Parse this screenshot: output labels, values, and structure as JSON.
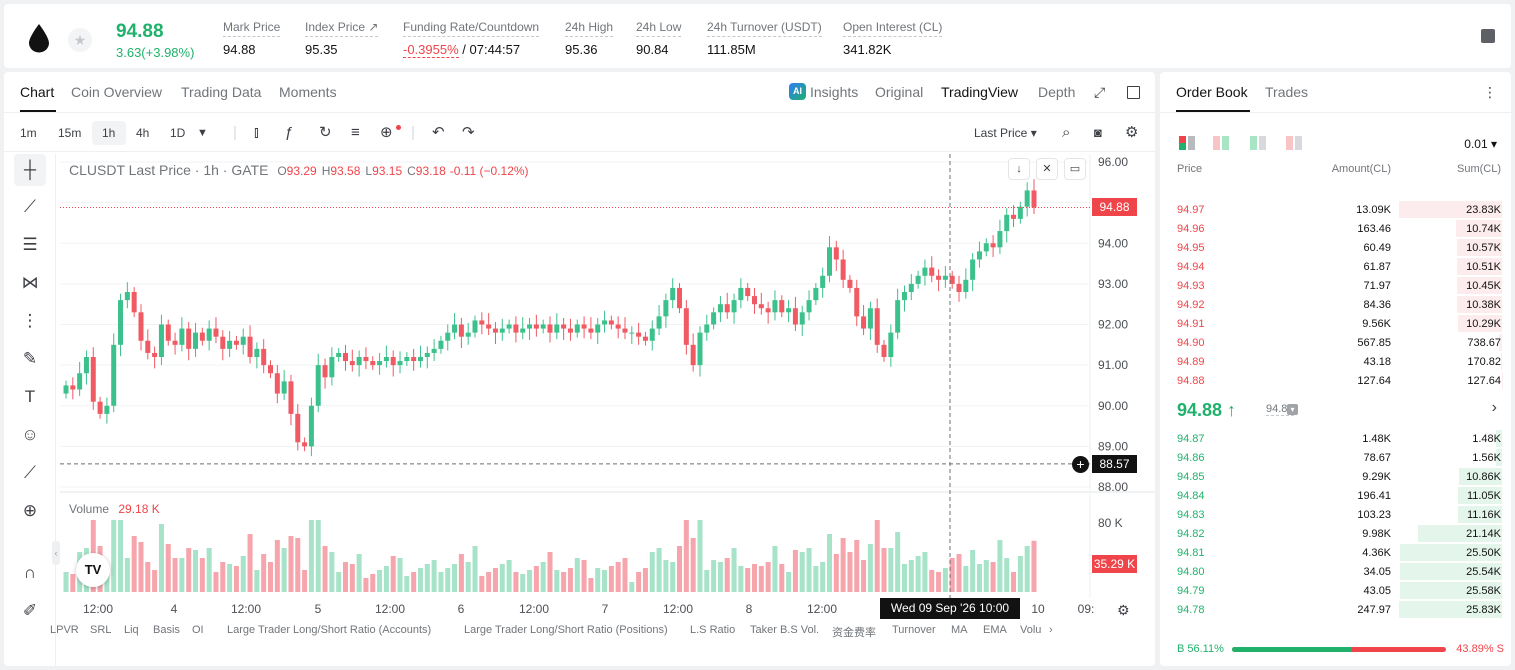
{
  "ticker": {
    "last_price": "94.88",
    "change": "3.63(+3.98%)",
    "stats": [
      {
        "label": "Mark Price",
        "value": "94.88",
        "value_parts": []
      },
      {
        "label": "Index Price ↗",
        "value": "95.35",
        "value_parts": []
      },
      {
        "label": "Funding Rate/Countdown",
        "value": "",
        "value_parts": [
          "-0.3955%",
          " / 07:44:57"
        ]
      },
      {
        "label": "24h High",
        "value": "95.36",
        "value_parts": []
      },
      {
        "label": "24h Low",
        "value": "90.84",
        "value_parts": []
      },
      {
        "label": "24h Turnover (USDT)",
        "value": "111.85M",
        "value_parts": []
      },
      {
        "label": "Open Interest (CL)",
        "value": "341.82K",
        "value_parts": []
      }
    ],
    "colors": {
      "up": "#20b26c",
      "down": "#ef454a"
    }
  },
  "chart_tabs": [
    "Chart",
    "Coin Overview",
    "Trading Data",
    "Moments"
  ],
  "view_tabs": {
    "ai_badge": "AI",
    "insights": "Insights",
    "original": "Original",
    "tradingview": "TradingView",
    "depth": "Depth"
  },
  "intervals": [
    "1m",
    "15m",
    "1h",
    "4h",
    "1D"
  ],
  "price_type": "Last Price ▾",
  "legend": {
    "title": "CLUSDT Last Price · 1h · GATE",
    "ohlc": [
      {
        "k": "O",
        "v": "93.29"
      },
      {
        "k": "H",
        "v": "93.58"
      },
      {
        "k": "L",
        "v": "93.15"
      },
      {
        "k": "C",
        "v": "93.18"
      }
    ],
    "change": "-0.11 (−0.12%)",
    "volume_label": "Volume",
    "volume_value": "29.18 K"
  },
  "price_tags": {
    "last": "94.88",
    "crosshair": "88.57",
    "volume": "35.29 K"
  },
  "crosshair_time": "Wed 09 Sep '26   10:00",
  "icons": {
    "cross": "crosshair-icon",
    "trend": "trend-line-icon",
    "fib": "fib-icon",
    "pattern": "pattern-icon",
    "measure": "measure-icon",
    "brush": "brush-icon",
    "text": "text-icon",
    "emoji": "emoji-icon",
    "ruler": "ruler-icon",
    "zoom": "zoom-icon",
    "magnet": "magnet-icon"
  },
  "indicator_bar": [
    "LPVR",
    "SRL",
    "Liq",
    "Basis",
    "OI",
    "Large Trader Long/Short Ratio (Accounts)",
    "Large Trader Long/Short Ratio (Positions)",
    "L.S Ratio",
    "Taker B.S Vol.",
    "资金费率",
    "Turnover",
    "MA",
    "EMA",
    "Volu"
  ],
  "chart_data": {
    "type": "candlestick",
    "title": "CLUSDT Last Price · 1h · GATE",
    "ylim": [
      88,
      96
    ],
    "y_ticks": [
      "96.00",
      "95.00",
      "94.00",
      "93.00",
      "92.00",
      "91.00",
      "90.00",
      "89.00",
      "88.00"
    ],
    "x_ticks": [
      "12:00",
      "4",
      "12:00",
      "5",
      "12:00",
      "6",
      "12:00",
      "7",
      "12:00",
      "8",
      "12:00",
      "10",
      "09:"
    ],
    "volume_ticks": [
      "80 K"
    ],
    "closes": [
      90.5,
      90.4,
      90.8,
      91.2,
      90.1,
      89.8,
      90.0,
      91.5,
      92.6,
      92.8,
      92.3,
      91.6,
      91.3,
      91.2,
      92.0,
      91.6,
      91.5,
      91.9,
      91.4,
      91.8,
      91.6,
      91.9,
      91.7,
      91.4,
      91.6,
      91.5,
      91.7,
      91.2,
      91.4,
      91.0,
      90.8,
      90.3,
      90.6,
      89.8,
      89.1,
      89.0,
      90.0,
      91.0,
      90.7,
      91.2,
      91.3,
      91.1,
      91.0,
      91.2,
      91.1,
      91.0,
      91.1,
      91.2,
      91.0,
      91.1,
      91.2,
      91.1,
      91.2,
      91.3,
      91.4,
      91.6,
      91.8,
      92.0,
      91.7,
      91.8,
      92.1,
      92.0,
      91.9,
      91.8,
      91.9,
      92.0,
      91.8,
      91.9,
      92.0,
      91.9,
      92.0,
      91.8,
      92.0,
      91.9,
      91.8,
      92.0,
      91.9,
      91.8,
      92.0,
      92.1,
      92.0,
      91.9,
      91.8,
      91.8,
      91.7,
      91.6,
      91.9,
      92.2,
      92.6,
      92.9,
      92.4,
      91.5,
      91.0,
      91.8,
      92.0,
      92.3,
      92.5,
      92.3,
      92.6,
      92.9,
      92.7,
      92.5,
      92.4,
      92.3,
      92.6,
      92.3,
      92.4,
      92.0,
      92.3,
      92.6,
      92.9,
      93.2,
      93.9,
      93.6,
      93.1,
      92.9,
      92.2,
      91.9,
      92.4,
      91.5,
      91.2,
      91.8,
      92.6,
      92.8,
      93.0,
      93.2,
      93.4,
      93.2,
      93.1,
      93.2,
      93.0,
      92.8,
      93.1,
      93.6,
      93.8,
      94.0,
      93.9,
      94.3,
      94.7,
      94.6,
      94.9,
      95.3,
      94.88
    ],
    "opens_note": "",
    "volumes": [],
    "current_price": 94.88,
    "crosshair_price": 88.57
  },
  "orderbook": {
    "tabs": [
      "Order Book",
      "Trades"
    ],
    "tick": "0.01 ▾",
    "columns": [
      "Price",
      "Amount(CL)",
      "Sum(CL)"
    ],
    "asks": [
      {
        "price": "94.97",
        "amount": "13.09K",
        "sum": "23.83K",
        "depth": 1.0
      },
      {
        "price": "94.96",
        "amount": "163.46",
        "sum": "10.74K",
        "depth": 0.45
      },
      {
        "price": "94.95",
        "amount": "60.49",
        "sum": "10.57K",
        "depth": 0.44
      },
      {
        "price": "94.94",
        "amount": "61.87",
        "sum": "10.51K",
        "depth": 0.44
      },
      {
        "price": "94.93",
        "amount": "71.97",
        "sum": "10.45K",
        "depth": 0.44
      },
      {
        "price": "94.92",
        "amount": "84.36",
        "sum": "10.38K",
        "depth": 0.44
      },
      {
        "price": "94.91",
        "amount": "9.56K",
        "sum": "10.29K",
        "depth": 0.43
      },
      {
        "price": "94.90",
        "amount": "567.85",
        "sum": "738.67",
        "depth": 0.03
      },
      {
        "price": "94.89",
        "amount": "43.18",
        "sum": "170.82",
        "depth": 0.01
      },
      {
        "price": "94.88",
        "amount": "127.64",
        "sum": "127.64",
        "depth": 0.005
      }
    ],
    "mid": {
      "price": "94.88 ↑",
      "mark": "94.88"
    },
    "bids": [
      {
        "price": "94.87",
        "amount": "1.48K",
        "sum": "1.48K",
        "depth": 0.06
      },
      {
        "price": "94.86",
        "amount": "78.67",
        "sum": "1.56K",
        "depth": 0.06
      },
      {
        "price": "94.85",
        "amount": "9.29K",
        "sum": "10.86K",
        "depth": 0.42
      },
      {
        "price": "94.84",
        "amount": "196.41",
        "sum": "11.05K",
        "depth": 0.43
      },
      {
        "price": "94.83",
        "amount": "103.23",
        "sum": "11.16K",
        "depth": 0.43
      },
      {
        "price": "94.82",
        "amount": "9.98K",
        "sum": "21.14K",
        "depth": 0.82
      },
      {
        "price": "94.81",
        "amount": "4.36K",
        "sum": "25.50K",
        "depth": 0.99
      },
      {
        "price": "94.80",
        "amount": "34.05",
        "sum": "25.54K",
        "depth": 0.99
      },
      {
        "price": "94.79",
        "amount": "43.05",
        "sum": "25.58K",
        "depth": 0.99
      },
      {
        "price": "94.78",
        "amount": "247.97",
        "sum": "25.83K",
        "depth": 1.0
      }
    ],
    "buy_ratio": "B 56.11%",
    "sell_ratio": "43.89% S",
    "buy_fraction": 0.5611
  }
}
